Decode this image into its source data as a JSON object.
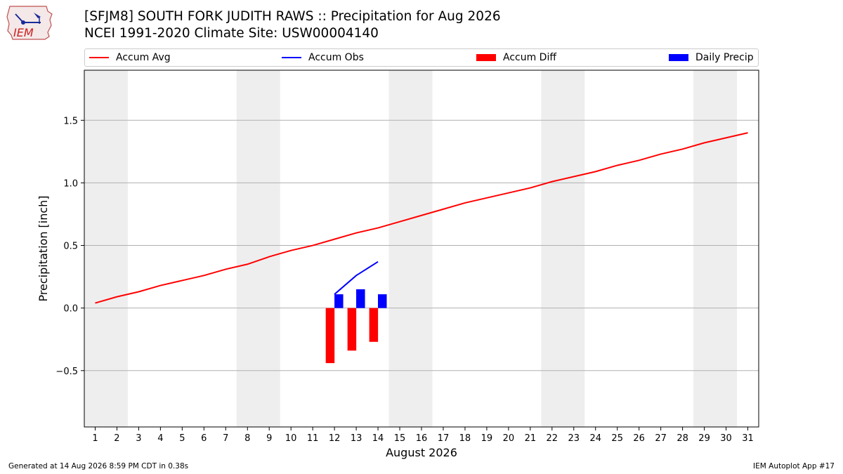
{
  "header": {
    "title_line1": "[SFJM8] SOUTH FORK JUDITH RAWS :: Precipitation for Aug 2026",
    "title_line2": "NCEI 1991-2020 Climate Site: USW00004140",
    "logo_text": "IEM"
  },
  "legend": {
    "items": [
      {
        "label": "Accum Avg",
        "color": "#ff0000",
        "kind": "line"
      },
      {
        "label": "Accum Obs",
        "color": "#0000ff",
        "kind": "line"
      },
      {
        "label": "Accum Diff",
        "color": "#ff0000",
        "kind": "bar"
      },
      {
        "label": "Daily Precip",
        "color": "#0000ff",
        "kind": "bar"
      }
    ]
  },
  "footer": {
    "generated": "Generated at 14 Aug 2026 8:59 PM CDT in 0.38s",
    "app": "IEM Autoplot App #17"
  },
  "chart_data": {
    "type": "line",
    "xlabel": "August 2026",
    "ylabel": "Precipitation [inch]",
    "xlim": [
      0.5,
      31.5
    ],
    "ylim": [
      -0.95,
      1.9
    ],
    "x_ticks": [
      1,
      2,
      3,
      4,
      5,
      6,
      7,
      8,
      9,
      10,
      11,
      12,
      13,
      14,
      15,
      16,
      17,
      18,
      19,
      20,
      21,
      22,
      23,
      24,
      25,
      26,
      27,
      28,
      29,
      30,
      31
    ],
    "y_ticks": [
      -0.5,
      0.0,
      0.5,
      1.0,
      1.5
    ],
    "y_tick_labels": [
      "−0.5",
      "0.0",
      "0.5",
      "1.0",
      "1.5"
    ],
    "grid": "horizontal",
    "legend_position": "top",
    "weekend_shading": [
      [
        0.5,
        2.5
      ],
      [
        7.5,
        9.5
      ],
      [
        14.5,
        16.5
      ],
      [
        21.5,
        23.5
      ],
      [
        28.5,
        30.5
      ]
    ],
    "series": [
      {
        "name": "Accum Avg",
        "type": "line",
        "color": "#ff0000",
        "x": [
          1,
          2,
          3,
          4,
          5,
          6,
          7,
          8,
          9,
          10,
          11,
          12,
          13,
          14,
          15,
          16,
          17,
          18,
          19,
          20,
          21,
          22,
          23,
          24,
          25,
          26,
          27,
          28,
          29,
          30,
          31
        ],
        "values": [
          0.04,
          0.09,
          0.13,
          0.18,
          0.22,
          0.26,
          0.31,
          0.35,
          0.41,
          0.46,
          0.5,
          0.55,
          0.6,
          0.64,
          0.69,
          0.74,
          0.79,
          0.84,
          0.88,
          0.92,
          0.96,
          1.01,
          1.05,
          1.09,
          1.14,
          1.18,
          1.23,
          1.27,
          1.32,
          1.36,
          1.4
        ]
      },
      {
        "name": "Accum Obs",
        "type": "line",
        "color": "#0000ff",
        "x": [
          12,
          13,
          14
        ],
        "values": [
          0.11,
          0.26,
          0.37
        ]
      },
      {
        "name": "Accum Diff",
        "type": "bar",
        "color": "#ff0000",
        "x": [
          12,
          13,
          14
        ],
        "values": [
          -0.44,
          -0.34,
          -0.27
        ]
      },
      {
        "name": "Daily Precip",
        "type": "bar",
        "color": "#0000ff",
        "x": [
          12,
          13,
          14
        ],
        "values": [
          0.11,
          0.15,
          0.11
        ]
      }
    ]
  }
}
